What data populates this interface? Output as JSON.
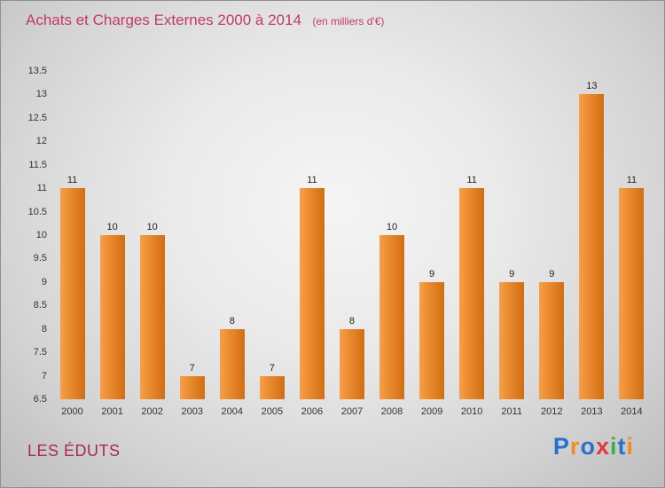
{
  "chart_data": {
    "type": "bar",
    "title": "Achats et Charges Externes 2000 à 2014",
    "subtitle": "(en milliers d'€)",
    "categories": [
      "2000",
      "2001",
      "2002",
      "2003",
      "2004",
      "2005",
      "2006",
      "2007",
      "2008",
      "2009",
      "2010",
      "2011",
      "2012",
      "2013",
      "2014"
    ],
    "values": [
      11,
      10,
      10,
      7,
      8,
      7,
      11,
      8,
      10,
      9,
      11,
      9,
      9,
      13,
      11
    ],
    "xlabel": "",
    "ylabel": "",
    "ylim": [
      6.5,
      13.5
    ],
    "yticks": [
      "6.5",
      "7",
      "7.5",
      "8",
      "8.5",
      "9",
      "9.5",
      "10",
      "10.5",
      "11",
      "11.5",
      "12",
      "12.5",
      "13",
      "13.5"
    ],
    "grid": false,
    "legend": "none",
    "bar_color_light": "#f5a04a",
    "bar_color_dark": "#d06e14"
  },
  "footer": {
    "company": "LES ÉDUTS"
  },
  "logo": {
    "name": "Proxiti",
    "letters": [
      {
        "ch": "P",
        "color": "#2b6fce"
      },
      {
        "ch": "r",
        "color": "#f08a24"
      },
      {
        "ch": "o",
        "color": "#2b6fce"
      },
      {
        "ch": "x",
        "color": "#e03a3a"
      },
      {
        "ch": "i",
        "color": "#3fae49"
      },
      {
        "ch": "t",
        "color": "#2b6fce"
      },
      {
        "ch": "i",
        "color": "#f08a24"
      }
    ]
  },
  "colors": {
    "title": "#c13b63",
    "company": "#a8294e"
  }
}
